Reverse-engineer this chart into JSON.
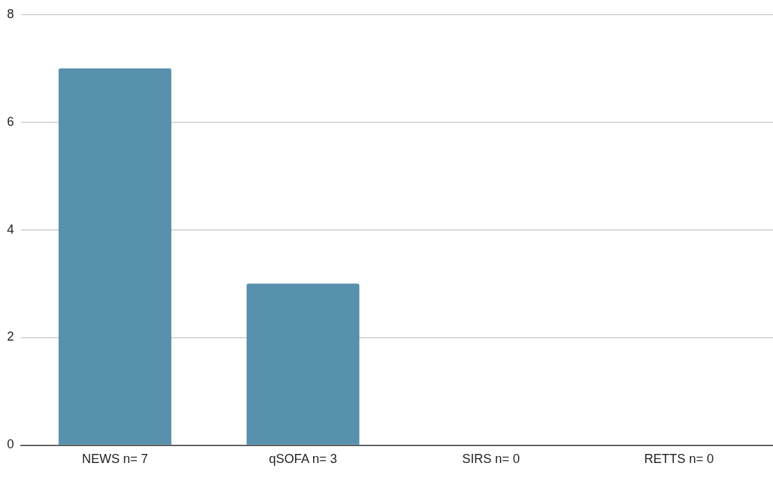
{
  "chart_data": {
    "type": "bar",
    "categories": [
      "NEWS n= 7",
      "qSOFA n= 3",
      "SIRS n= 0",
      "RETTS n= 0"
    ],
    "values": [
      7,
      3,
      0,
      0
    ],
    "color": "#5891ae",
    "ylim": [
      0,
      8
    ],
    "yticks": [
      0,
      2,
      4,
      6,
      8
    ],
    "grid": "y",
    "legend": false
  }
}
